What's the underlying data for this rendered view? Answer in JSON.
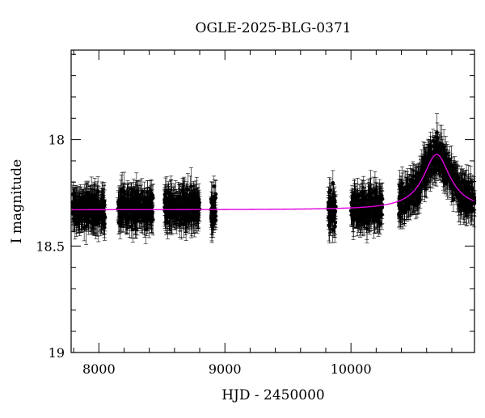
{
  "chart_data": {
    "type": "scatter",
    "title": "OGLE-2025-BLG-0371",
    "xlabel": "HJD - 2450000",
    "ylabel": "I magnitude",
    "xlim": [
      7780,
      10980
    ],
    "ylim": [
      19.0,
      17.58
    ],
    "y_inverted": true,
    "x_ticks": [
      8000,
      9000,
      10000
    ],
    "y_ticks": [
      18,
      18.5,
      19
    ],
    "y_tick_labels": [
      "18",
      "18.5",
      "19"
    ],
    "x_tick_labels": [
      "8000",
      "9000",
      "10000"
    ],
    "grid": false,
    "colors": {
      "points": "#000000",
      "model": "#e000e0",
      "axes": "#000000"
    },
    "observing_seasons": [
      {
        "x_start": 7790,
        "x_end": 8050,
        "mean_mag": 18.33,
        "scatter": 0.05,
        "err": 0.06
      },
      {
        "x_start": 8150,
        "x_end": 8430,
        "mean_mag": 18.32,
        "scatter": 0.05,
        "err": 0.06
      },
      {
        "x_start": 8520,
        "x_end": 8800,
        "mean_mag": 18.32,
        "scatter": 0.05,
        "err": 0.06
      },
      {
        "x_start": 8890,
        "x_end": 8930,
        "mean_mag": 18.33,
        "scatter": 0.05,
        "err": 0.06
      },
      {
        "x_start": 9820,
        "x_end": 9880,
        "mean_mag": 18.34,
        "scatter": 0.06,
        "err": 0.06
      },
      {
        "x_start": 10000,
        "x_end": 10250,
        "mean_mag": 18.32,
        "scatter": 0.05,
        "err": 0.06
      },
      {
        "x_start": 10380,
        "x_end": 10980,
        "mean_mag": null,
        "scatter": 0.05,
        "err": 0.06
      }
    ],
    "model_curve": {
      "baseline_mag": 18.33,
      "peak_x": 10680,
      "peak_mag": 18.07,
      "width": 130,
      "x_range": [
        7780,
        10980
      ]
    }
  }
}
